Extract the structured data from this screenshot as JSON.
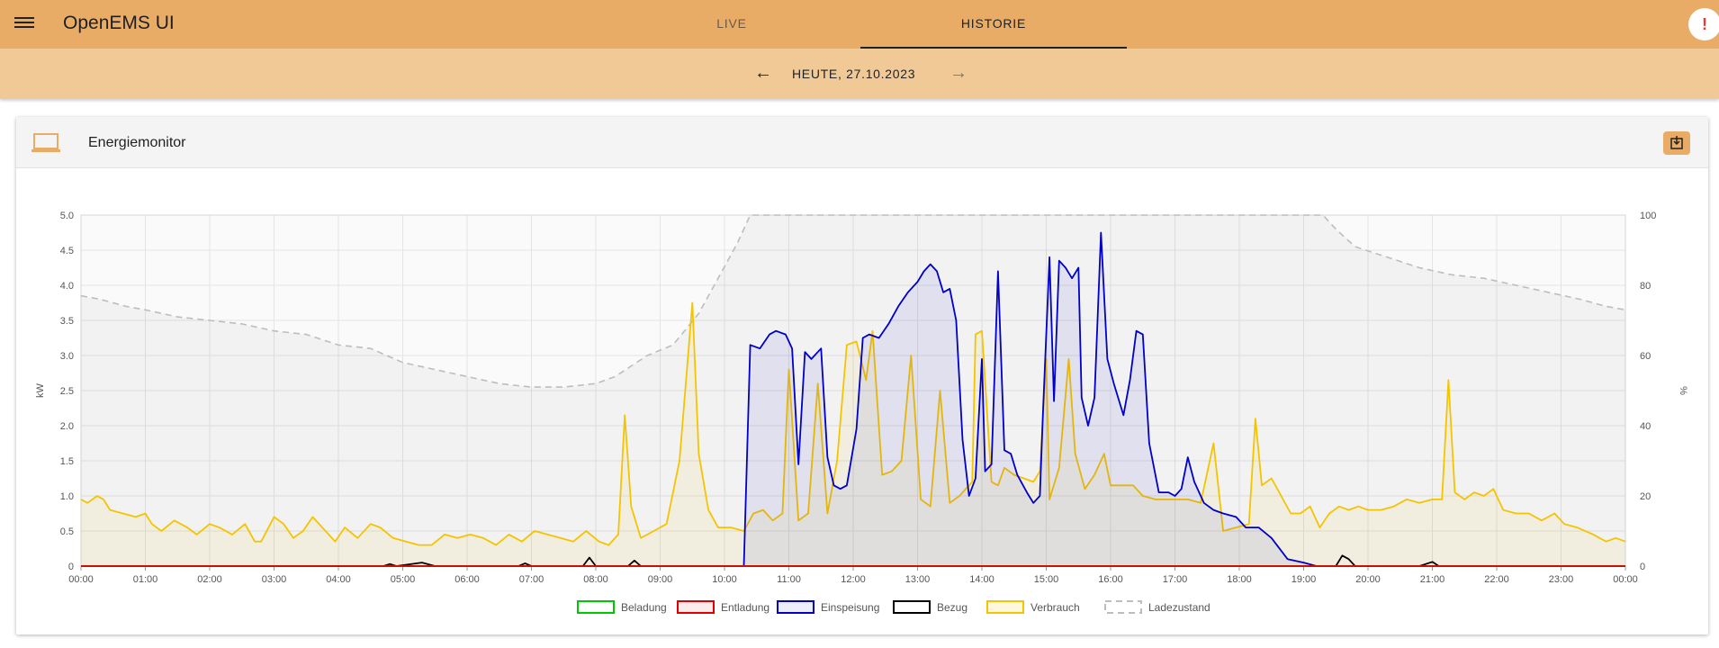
{
  "app": {
    "title": "OpenEMS UI"
  },
  "tabs": [
    {
      "label": "LIVE"
    },
    {
      "label": "HISTORIE"
    }
  ],
  "alert": {
    "glyph": "!"
  },
  "date_nav": {
    "label": "HEUTE, 27.10.2023",
    "prev_icon": "arrow-left-icon",
    "next_icon": "arrow-right-icon"
  },
  "card": {
    "title": "Energiemonitor",
    "icon": "laptop-icon",
    "action_icon": "download-icon"
  },
  "colors": {
    "accent": "#e8ac67",
    "accent_light": "#f0c996",
    "beladung": "#00c800",
    "entladung": "#e00000",
    "einspeisung": "#0000c8",
    "bezug": "#000000",
    "verbrauch": "#f4c400",
    "ladezustand": "#bdbdbd"
  },
  "chart_data": {
    "type": "line",
    "x": [
      "00:00",
      "01:00",
      "02:00",
      "03:00",
      "04:00",
      "05:00",
      "06:00",
      "07:00",
      "08:00",
      "09:00",
      "10:00",
      "11:00",
      "12:00",
      "13:00",
      "14:00",
      "15:00",
      "16:00",
      "17:00",
      "18:00",
      "19:00",
      "20:00",
      "21:00",
      "22:00",
      "23:00",
      "00:00"
    ],
    "ylabel": "kW",
    "y2label": "%",
    "ylim": [
      0,
      5
    ],
    "y2lim": [
      0,
      100
    ],
    "y_ticks": [
      "0",
      "0.5",
      "1.0",
      "1.5",
      "2.0",
      "2.5",
      "3.0",
      "3.5",
      "4.0",
      "4.5",
      "5.0"
    ],
    "y2_ticks": [
      "0",
      "20",
      "40",
      "60",
      "80",
      "100"
    ],
    "legend": [
      "Beladung",
      "Entladung",
      "Einspeisung",
      "Bezug",
      "Verbrauch",
      "Ladezustand"
    ],
    "series": [
      {
        "name": "Beladung",
        "axis": "left",
        "points": [
          [
            0,
            0
          ],
          [
            24,
            0
          ]
        ]
      },
      {
        "name": "Entladung",
        "axis": "left",
        "points": [
          [
            0,
            0
          ],
          [
            24,
            0
          ]
        ]
      },
      {
        "name": "Einspeisung",
        "axis": "left",
        "fill": true,
        "points": [
          [
            0,
            0
          ],
          [
            10.3,
            0
          ],
          [
            10.4,
            3.15
          ],
          [
            10.55,
            3.1
          ],
          [
            10.7,
            3.3
          ],
          [
            10.8,
            3.35
          ],
          [
            10.95,
            3.3
          ],
          [
            11.05,
            3.1
          ],
          [
            11.15,
            1.45
          ],
          [
            11.25,
            3.05
          ],
          [
            11.35,
            2.95
          ],
          [
            11.5,
            3.1
          ],
          [
            11.6,
            1.55
          ],
          [
            11.7,
            1.15
          ],
          [
            11.8,
            1.1
          ],
          [
            11.9,
            1.15
          ],
          [
            12.05,
            1.95
          ],
          [
            12.15,
            3.25
          ],
          [
            12.25,
            3.3
          ],
          [
            12.4,
            3.25
          ],
          [
            12.55,
            3.45
          ],
          [
            12.7,
            3.7
          ],
          [
            12.85,
            3.9
          ],
          [
            13.0,
            4.05
          ],
          [
            13.1,
            4.2
          ],
          [
            13.2,
            4.3
          ],
          [
            13.3,
            4.2
          ],
          [
            13.4,
            3.9
          ],
          [
            13.5,
            3.95
          ],
          [
            13.6,
            3.5
          ],
          [
            13.7,
            1.8
          ],
          [
            13.8,
            1.0
          ],
          [
            13.9,
            1.25
          ],
          [
            14.0,
            2.95
          ],
          [
            14.05,
            1.35
          ],
          [
            14.15,
            1.45
          ],
          [
            14.25,
            4.2
          ],
          [
            14.35,
            1.65
          ],
          [
            14.45,
            1.6
          ],
          [
            14.55,
            1.3
          ],
          [
            14.7,
            1.05
          ],
          [
            14.8,
            0.9
          ],
          [
            14.9,
            1.0
          ],
          [
            14.95,
            2.2
          ],
          [
            15.05,
            4.4
          ],
          [
            15.12,
            2.35
          ],
          [
            15.2,
            4.35
          ],
          [
            15.3,
            4.25
          ],
          [
            15.4,
            4.1
          ],
          [
            15.5,
            4.25
          ],
          [
            15.55,
            2.4
          ],
          [
            15.65,
            2.0
          ],
          [
            15.75,
            2.4
          ],
          [
            15.85,
            4.75
          ],
          [
            15.95,
            2.95
          ],
          [
            16.05,
            2.6
          ],
          [
            16.2,
            2.15
          ],
          [
            16.3,
            2.65
          ],
          [
            16.4,
            3.35
          ],
          [
            16.5,
            3.3
          ],
          [
            16.6,
            1.75
          ],
          [
            16.75,
            1.05
          ],
          [
            16.9,
            1.05
          ],
          [
            17.0,
            1.0
          ],
          [
            17.1,
            1.1
          ],
          [
            17.2,
            1.55
          ],
          [
            17.3,
            1.2
          ],
          [
            17.45,
            0.9
          ],
          [
            17.6,
            0.8
          ],
          [
            17.75,
            0.75
          ],
          [
            17.95,
            0.7
          ],
          [
            18.1,
            0.55
          ],
          [
            18.3,
            0.55
          ],
          [
            18.5,
            0.4
          ],
          [
            18.75,
            0.1
          ],
          [
            19.0,
            0.05
          ],
          [
            19.2,
            0.0
          ],
          [
            24,
            0
          ]
        ]
      },
      {
        "name": "Bezug",
        "axis": "left",
        "points": [
          [
            0,
            0
          ],
          [
            4.7,
            0
          ],
          [
            4.8,
            0.03
          ],
          [
            4.9,
            0.0
          ],
          [
            5.3,
            0.05
          ],
          [
            5.5,
            0.0
          ],
          [
            6.8,
            0.0
          ],
          [
            6.9,
            0.04
          ],
          [
            7.0,
            0.0
          ],
          [
            7.8,
            0.0
          ],
          [
            7.9,
            0.12
          ],
          [
            8.0,
            0.0
          ],
          [
            8.5,
            0.0
          ],
          [
            8.6,
            0.08
          ],
          [
            8.7,
            0.0
          ],
          [
            19.5,
            0.0
          ],
          [
            19.6,
            0.15
          ],
          [
            19.7,
            0.1
          ],
          [
            19.8,
            0.0
          ],
          [
            20.8,
            0.0
          ],
          [
            21.0,
            0.06
          ],
          [
            21.1,
            0.0
          ],
          [
            24,
            0
          ]
        ]
      },
      {
        "name": "Verbrauch",
        "axis": "left",
        "points": [
          [
            0.0,
            0.95
          ],
          [
            0.1,
            0.9
          ],
          [
            0.25,
            1.0
          ],
          [
            0.35,
            0.95
          ],
          [
            0.45,
            0.8
          ],
          [
            0.65,
            0.75
          ],
          [
            0.85,
            0.7
          ],
          [
            1.0,
            0.75
          ],
          [
            1.1,
            0.6
          ],
          [
            1.25,
            0.5
          ],
          [
            1.45,
            0.65
          ],
          [
            1.65,
            0.55
          ],
          [
            1.8,
            0.45
          ],
          [
            2.0,
            0.6
          ],
          [
            2.15,
            0.55
          ],
          [
            2.35,
            0.45
          ],
          [
            2.55,
            0.6
          ],
          [
            2.7,
            0.35
          ],
          [
            2.8,
            0.35
          ],
          [
            3.0,
            0.7
          ],
          [
            3.15,
            0.6
          ],
          [
            3.3,
            0.4
          ],
          [
            3.45,
            0.5
          ],
          [
            3.6,
            0.7
          ],
          [
            3.8,
            0.5
          ],
          [
            3.95,
            0.35
          ],
          [
            4.1,
            0.55
          ],
          [
            4.3,
            0.4
          ],
          [
            4.5,
            0.6
          ],
          [
            4.65,
            0.55
          ],
          [
            4.85,
            0.4
          ],
          [
            5.05,
            0.35
          ],
          [
            5.25,
            0.3
          ],
          [
            5.45,
            0.3
          ],
          [
            5.65,
            0.45
          ],
          [
            5.85,
            0.4
          ],
          [
            6.05,
            0.45
          ],
          [
            6.25,
            0.4
          ],
          [
            6.45,
            0.3
          ],
          [
            6.65,
            0.45
          ],
          [
            6.85,
            0.35
          ],
          [
            7.05,
            0.5
          ],
          [
            7.25,
            0.45
          ],
          [
            7.45,
            0.4
          ],
          [
            7.65,
            0.35
          ],
          [
            7.85,
            0.5
          ],
          [
            8.05,
            0.35
          ],
          [
            8.2,
            0.3
          ],
          [
            8.35,
            0.45
          ],
          [
            8.45,
            2.15
          ],
          [
            8.55,
            0.85
          ],
          [
            8.7,
            0.4
          ],
          [
            8.9,
            0.5
          ],
          [
            9.1,
            0.6
          ],
          [
            9.3,
            1.5
          ],
          [
            9.5,
            3.75
          ],
          [
            9.6,
            1.6
          ],
          [
            9.75,
            0.8
          ],
          [
            9.9,
            0.55
          ],
          [
            10.1,
            0.55
          ],
          [
            10.3,
            0.5
          ],
          [
            10.45,
            0.75
          ],
          [
            10.6,
            0.8
          ],
          [
            10.75,
            0.65
          ],
          [
            10.9,
            0.75
          ],
          [
            11.0,
            2.8
          ],
          [
            11.15,
            0.65
          ],
          [
            11.3,
            0.75
          ],
          [
            11.45,
            2.6
          ],
          [
            11.6,
            0.75
          ],
          [
            11.75,
            1.5
          ],
          [
            11.9,
            3.15
          ],
          [
            12.05,
            3.2
          ],
          [
            12.2,
            2.65
          ],
          [
            12.3,
            3.35
          ],
          [
            12.45,
            1.3
          ],
          [
            12.6,
            1.35
          ],
          [
            12.75,
            1.5
          ],
          [
            12.9,
            3.0
          ],
          [
            13.05,
            0.95
          ],
          [
            13.2,
            0.85
          ],
          [
            13.35,
            2.5
          ],
          [
            13.5,
            0.9
          ],
          [
            13.65,
            1.0
          ],
          [
            13.85,
            1.2
          ],
          [
            13.9,
            3.3
          ],
          [
            14.0,
            3.35
          ],
          [
            14.15,
            1.2
          ],
          [
            14.25,
            1.15
          ],
          [
            14.35,
            1.4
          ],
          [
            14.5,
            1.3
          ],
          [
            14.65,
            1.25
          ],
          [
            14.8,
            1.2
          ],
          [
            14.9,
            1.35
          ],
          [
            15.0,
            2.95
          ],
          [
            15.05,
            0.95
          ],
          [
            15.2,
            1.4
          ],
          [
            15.35,
            2.95
          ],
          [
            15.45,
            1.6
          ],
          [
            15.6,
            1.1
          ],
          [
            15.75,
            1.3
          ],
          [
            15.9,
            1.6
          ],
          [
            16.0,
            1.15
          ],
          [
            16.15,
            1.15
          ],
          [
            16.35,
            1.15
          ],
          [
            16.5,
            1.0
          ],
          [
            16.7,
            0.95
          ],
          [
            16.85,
            0.95
          ],
          [
            17.05,
            0.95
          ],
          [
            17.2,
            0.95
          ],
          [
            17.4,
            0.9
          ],
          [
            17.6,
            1.75
          ],
          [
            17.75,
            0.5
          ],
          [
            17.95,
            0.55
          ],
          [
            18.15,
            0.6
          ],
          [
            18.25,
            2.1
          ],
          [
            18.35,
            1.15
          ],
          [
            18.5,
            1.25
          ],
          [
            18.65,
            1.0
          ],
          [
            18.8,
            0.75
          ],
          [
            18.95,
            0.75
          ],
          [
            19.1,
            0.85
          ],
          [
            19.25,
            0.55
          ],
          [
            19.4,
            0.75
          ],
          [
            19.55,
            0.85
          ],
          [
            19.7,
            0.8
          ],
          [
            19.85,
            0.85
          ],
          [
            20.0,
            0.8
          ],
          [
            20.2,
            0.8
          ],
          [
            20.4,
            0.85
          ],
          [
            20.6,
            0.95
          ],
          [
            20.8,
            0.9
          ],
          [
            21.0,
            0.95
          ],
          [
            21.15,
            0.95
          ],
          [
            21.25,
            2.65
          ],
          [
            21.35,
            1.05
          ],
          [
            21.5,
            0.95
          ],
          [
            21.65,
            1.05
          ],
          [
            21.8,
            1.0
          ],
          [
            21.95,
            1.1
          ],
          [
            22.1,
            0.8
          ],
          [
            22.3,
            0.75
          ],
          [
            22.5,
            0.75
          ],
          [
            22.7,
            0.65
          ],
          [
            22.9,
            0.75
          ],
          [
            23.05,
            0.6
          ],
          [
            23.25,
            0.55
          ],
          [
            23.5,
            0.45
          ],
          [
            23.7,
            0.35
          ],
          [
            23.85,
            0.4
          ],
          [
            24.0,
            0.35
          ]
        ]
      },
      {
        "name": "Ladezustand",
        "axis": "right",
        "dashed": true,
        "points": [
          [
            0,
            77
          ],
          [
            0.3,
            76
          ],
          [
            0.7,
            74
          ],
          [
            1.0,
            73
          ],
          [
            1.5,
            71
          ],
          [
            2.0,
            70
          ],
          [
            2.5,
            69
          ],
          [
            3.0,
            67
          ],
          [
            3.5,
            66
          ],
          [
            4.0,
            63
          ],
          [
            4.5,
            62
          ],
          [
            5.0,
            58
          ],
          [
            5.5,
            56
          ],
          [
            6.0,
            54
          ],
          [
            6.5,
            52
          ],
          [
            7.0,
            51
          ],
          [
            7.5,
            51
          ],
          [
            8.0,
            52
          ],
          [
            8.3,
            54
          ],
          [
            8.8,
            60
          ],
          [
            9.2,
            63
          ],
          [
            9.6,
            72
          ],
          [
            9.9,
            82
          ],
          [
            10.2,
            92
          ],
          [
            10.4,
            100
          ],
          [
            19.3,
            100
          ],
          [
            19.5,
            96
          ],
          [
            19.8,
            91
          ],
          [
            20.3,
            88
          ],
          [
            20.8,
            85
          ],
          [
            21.3,
            83
          ],
          [
            21.8,
            82
          ],
          [
            22.3,
            80
          ],
          [
            22.8,
            78
          ],
          [
            23.3,
            76
          ],
          [
            23.7,
            74
          ],
          [
            24.0,
            73
          ]
        ]
      }
    ]
  }
}
